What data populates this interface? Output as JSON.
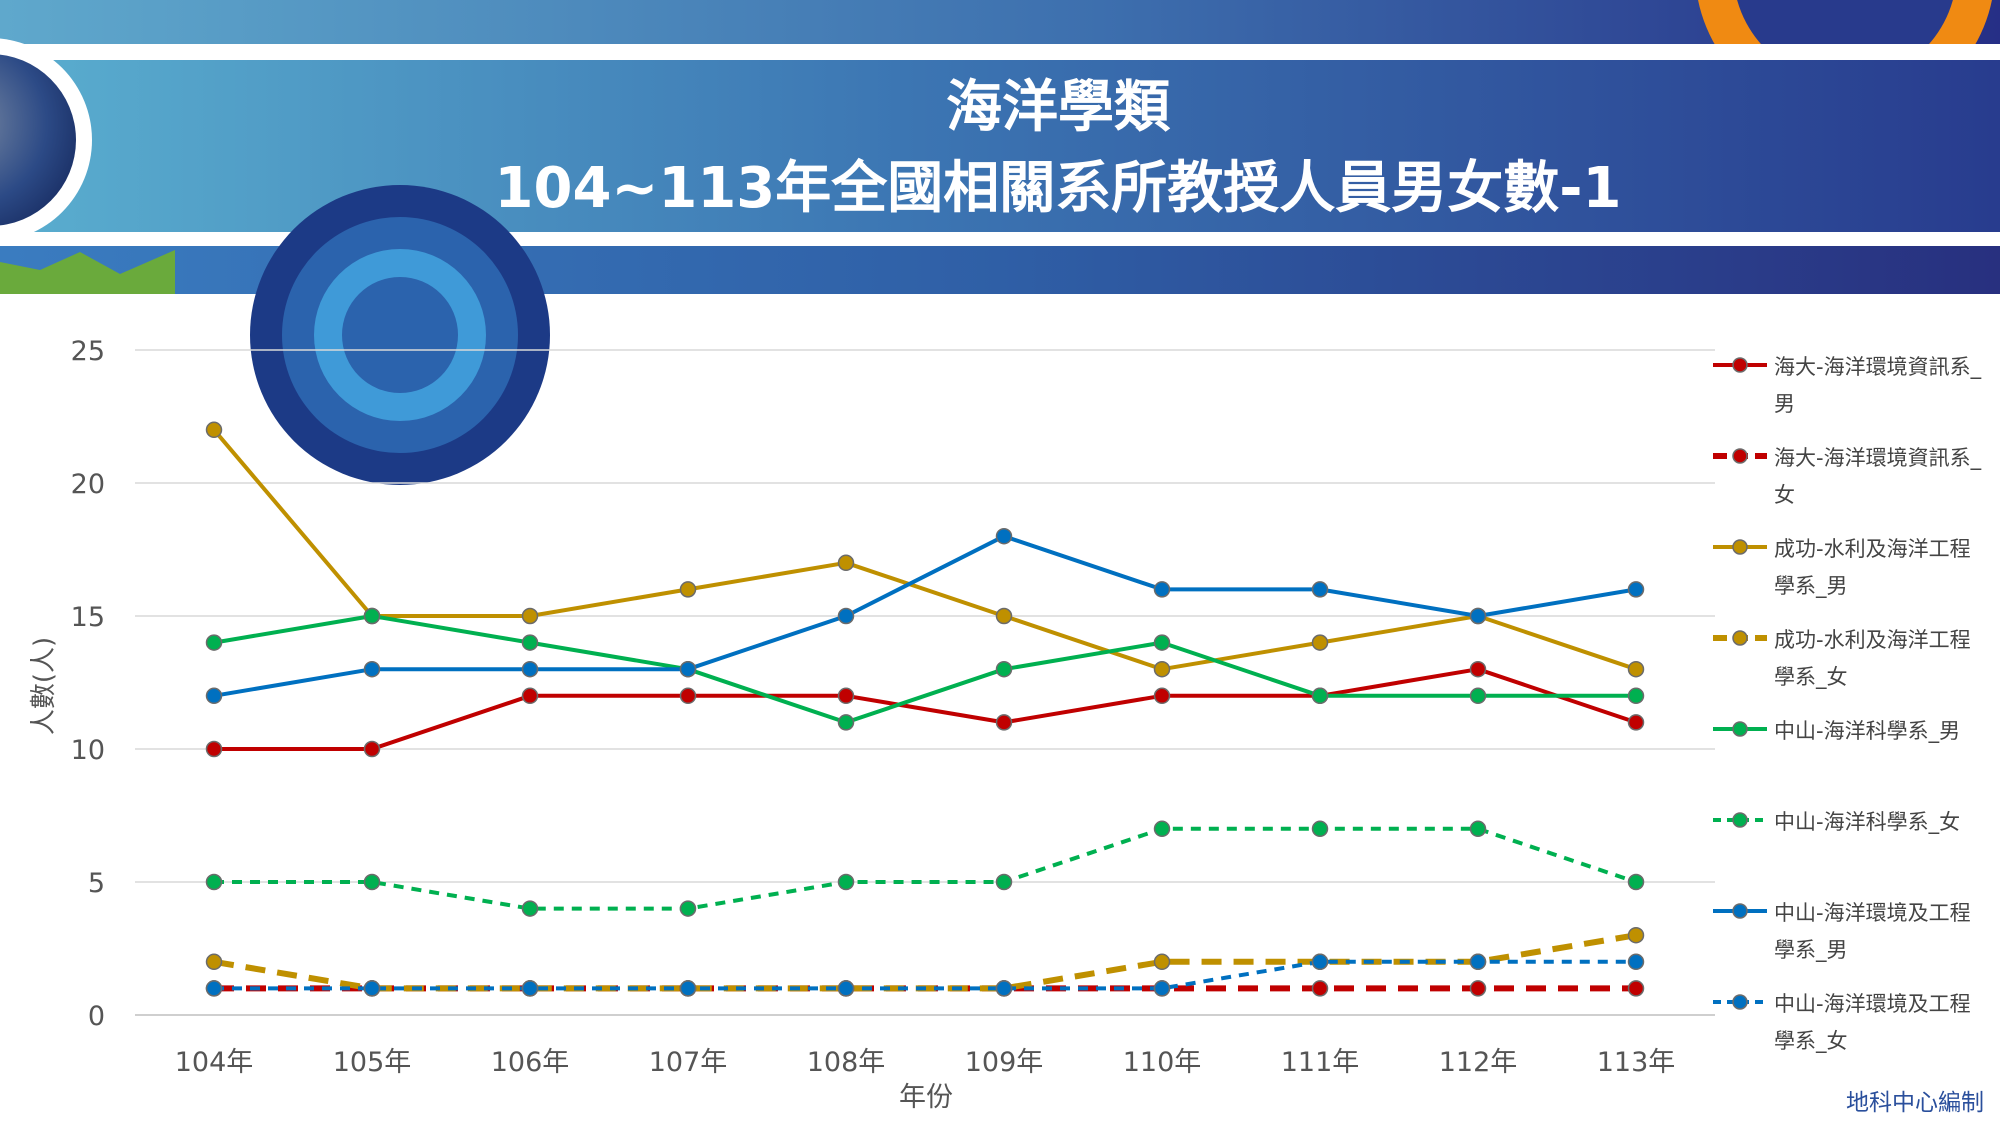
{
  "banner": {
    "title_line1": "海洋學類",
    "title_line2": "104~113年全國相關系所教授人員男女數-1"
  },
  "credit": "地科中心編制",
  "chart_data": {
    "type": "line",
    "xlabel": "年份",
    "ylabel": "人數(人)",
    "categories": [
      "104年",
      "105年",
      "106年",
      "107年",
      "108年",
      "109年",
      "110年",
      "111年",
      "112年",
      "113年"
    ],
    "ylim": [
      0,
      25
    ],
    "yticks": [
      0,
      5,
      10,
      15,
      20,
      25
    ],
    "grid": "horizontal",
    "legend_position": "right",
    "series": [
      {
        "name": "海大-海洋環境資訊系_男",
        "legend_lines": [
          "海大-海洋環境資訊系_",
          "男"
        ],
        "color": "#c00000",
        "dash": "solid",
        "values": [
          10,
          10,
          12,
          12,
          12,
          11,
          12,
          12,
          13,
          11
        ]
      },
      {
        "name": "海大-海洋環境資訊系_女",
        "legend_lines": [
          "海大-海洋環境資訊系_",
          "女"
        ],
        "color": "#c00000",
        "dash": "dash-thick",
        "values": [
          1,
          1,
          1,
          1,
          1,
          1,
          1,
          1,
          1,
          1
        ]
      },
      {
        "name": "成功-水利及海洋工程學系_男",
        "legend_lines": [
          "成功-水利及海洋工程",
          "學系_男"
        ],
        "color": "#bf9000",
        "dash": "solid",
        "values": [
          22,
          15,
          15,
          16,
          17,
          15,
          13,
          14,
          15,
          13
        ]
      },
      {
        "name": "成功-水利及海洋工程學系_女",
        "legend_lines": [
          "成功-水利及海洋工程",
          "學系_女"
        ],
        "color": "#bf9000",
        "dash": "dash-thick",
        "values": [
          2,
          1,
          1,
          1,
          1,
          1,
          2,
          2,
          2,
          3
        ]
      },
      {
        "name": "中山-海洋科學系_男",
        "legend_lines": [
          "中山-海洋科學系_男"
        ],
        "color": "#00b050",
        "dash": "solid",
        "values": [
          14,
          15,
          14,
          13,
          11,
          13,
          14,
          12,
          12,
          12
        ]
      },
      {
        "name": "中山-海洋科學系_女",
        "legend_lines": [
          "中山-海洋科學系_女"
        ],
        "color": "#00b050",
        "dash": "dash",
        "values": [
          5,
          5,
          4,
          4,
          5,
          5,
          7,
          7,
          7,
          5
        ]
      },
      {
        "name": "中山-海洋環境及工程學系_男",
        "legend_lines": [
          "中山-海洋環境及工程",
          "學系_男"
        ],
        "color": "#0070c0",
        "dash": "solid",
        "values": [
          12,
          13,
          13,
          13,
          15,
          18,
          16,
          16,
          15,
          16
        ]
      },
      {
        "name": "中山-海洋環境及工程學系_女",
        "legend_lines": [
          "中山-海洋環境及工程",
          "學系_女"
        ],
        "color": "#0070c0",
        "dash": "dash",
        "values": [
          1,
          1,
          1,
          1,
          1,
          1,
          1,
          2,
          2,
          2
        ]
      }
    ]
  }
}
